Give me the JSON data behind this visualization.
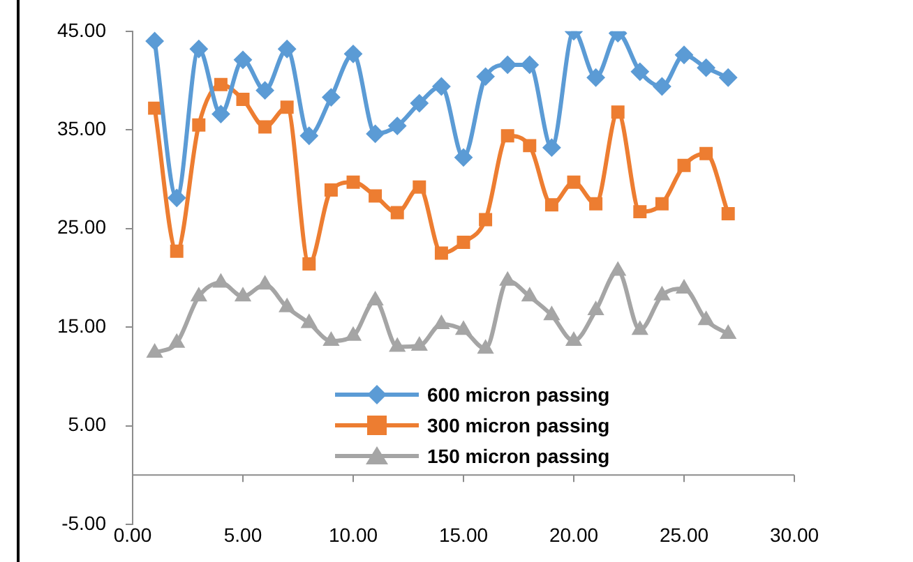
{
  "chart_data": {
    "type": "line",
    "x": [
      1,
      2,
      3,
      4,
      5,
      6,
      7,
      8,
      9,
      10,
      11,
      12,
      13,
      14,
      15,
      16,
      17,
      18,
      19,
      20,
      21,
      22,
      23,
      24,
      25,
      26,
      27
    ],
    "xlim": [
      0,
      30
    ],
    "xticks": [
      {
        "value": 0,
        "label": "0.00"
      },
      {
        "value": 5,
        "label": "5.00"
      },
      {
        "value": 10,
        "label": "10.00"
      },
      {
        "value": 15,
        "label": "15.00"
      },
      {
        "value": 20,
        "label": "20.00"
      },
      {
        "value": 25,
        "label": "25.00"
      },
      {
        "value": 30,
        "label": "30.00"
      }
    ],
    "ylim": [
      -5,
      45
    ],
    "yticks": [
      {
        "value": -5,
        "label": "-5.00"
      },
      {
        "value": 5,
        "label": "5.00"
      },
      {
        "value": 15,
        "label": "15.00"
      },
      {
        "value": 25,
        "label": "25.00"
      },
      {
        "value": 35,
        "label": "35.00"
      },
      {
        "value": 45,
        "label": "45.00"
      }
    ],
    "grid": false,
    "legend": "bottom",
    "line_style": "solid",
    "series": [
      {
        "name": "600 micron passing",
        "color": "#5b9bd5",
        "marker": "diamond",
        "values": [
          44.0,
          28.1,
          43.2,
          36.6,
          42.1,
          39.0,
          43.2,
          34.4,
          38.3,
          42.7,
          34.6,
          35.4,
          37.7,
          39.4,
          32.2,
          40.4,
          41.6,
          41.6,
          33.2,
          45.0,
          40.3,
          44.8,
          40.9,
          39.4,
          42.6,
          41.3,
          40.3
        ]
      },
      {
        "name": "300 micron passing",
        "color": "#ed7d31",
        "marker": "square",
        "values": [
          37.2,
          22.7,
          35.5,
          39.6,
          38.1,
          35.3,
          37.3,
          21.4,
          28.9,
          29.7,
          28.3,
          26.6,
          29.2,
          22.5,
          23.6,
          25.9,
          34.4,
          33.4,
          27.4,
          29.7,
          27.5,
          36.8,
          26.7,
          27.5,
          31.4,
          32.6,
          26.5
        ]
      },
      {
        "name": "150 micron passing",
        "color": "#a5a5a5",
        "marker": "triangle",
        "values": [
          12.4,
          13.4,
          18.1,
          19.5,
          18.1,
          19.3,
          17.0,
          15.4,
          13.6,
          14.1,
          17.7,
          13.0,
          13.1,
          15.3,
          14.7,
          12.8,
          19.7,
          18.1,
          16.2,
          13.6,
          16.7,
          20.7,
          14.7,
          18.2,
          18.9,
          15.7,
          14.3
        ]
      }
    ]
  }
}
